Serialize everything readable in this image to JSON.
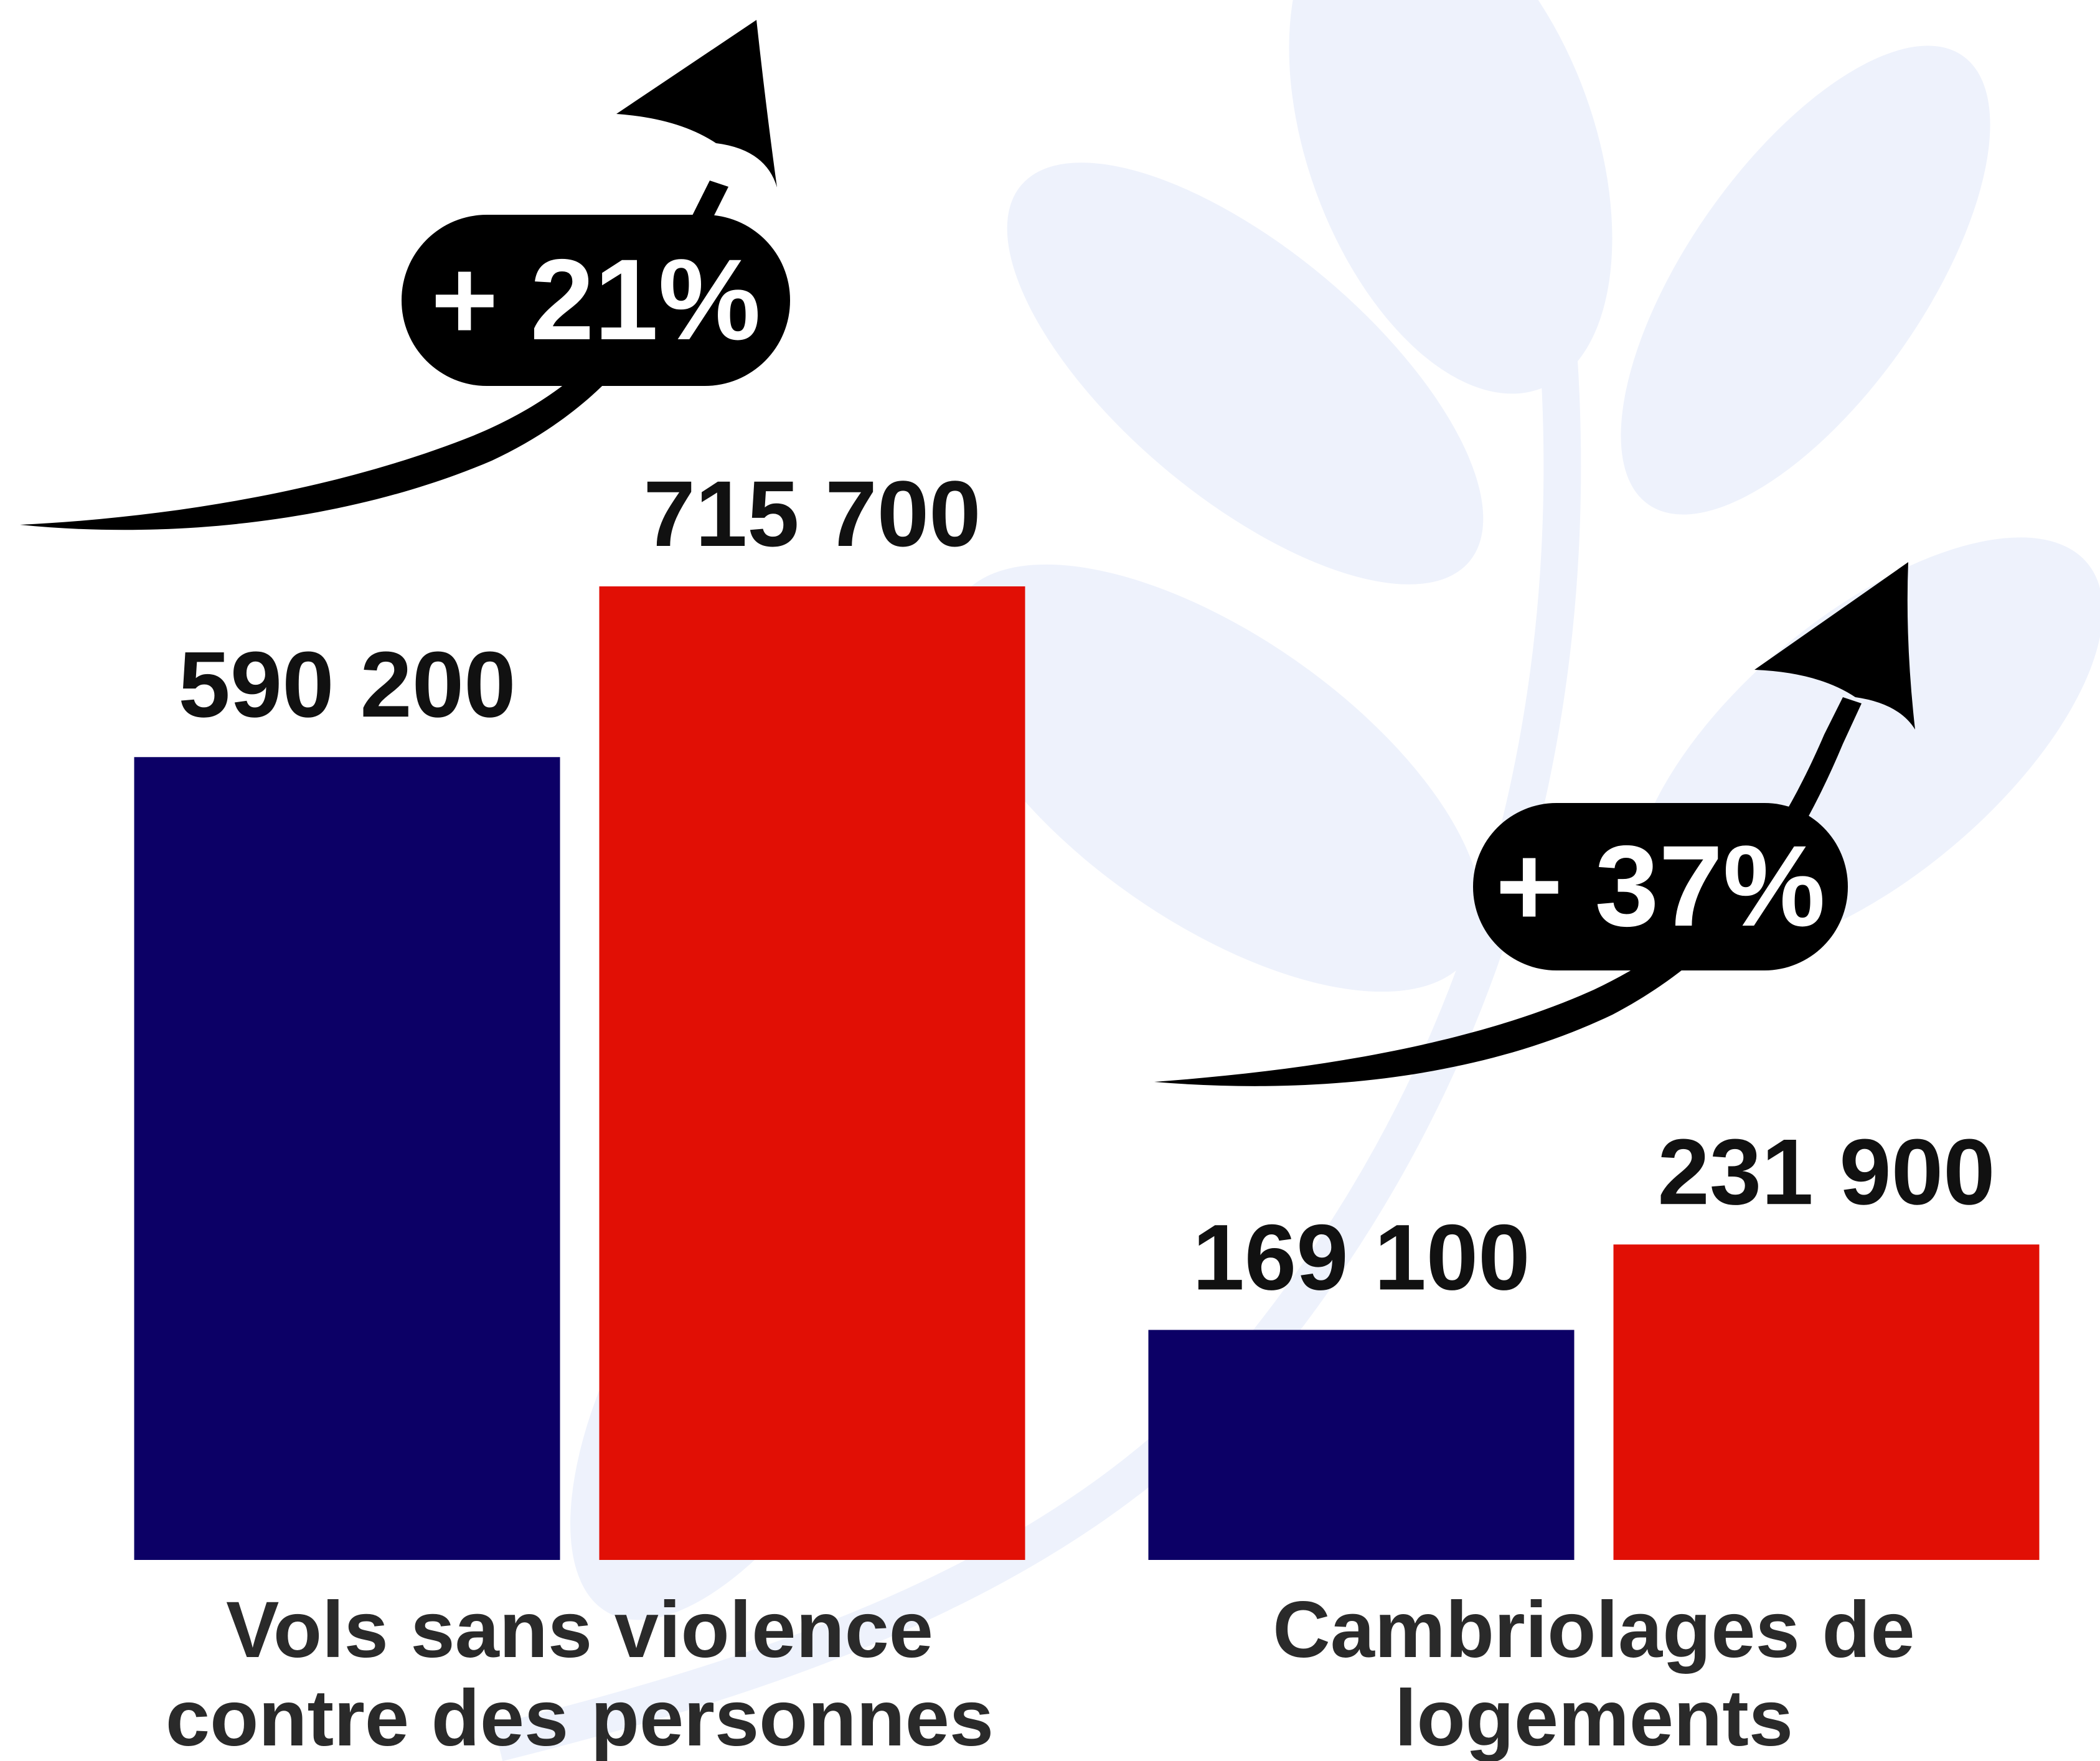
{
  "chart_data": {
    "type": "bar",
    "categories": [
      "Vols sans violence\ncontre des personnes",
      "Cambriolages de\nlogements"
    ],
    "series": [
      {
        "color": "#0c0066",
        "values": [
          590200,
          169100
        ],
        "value_labels": [
          "590 200",
          "169 100"
        ]
      },
      {
        "color": "#e10f05",
        "values": [
          715700,
          231900
        ],
        "value_labels": [
          "715 700",
          "231 900"
        ]
      }
    ],
    "annotations": [
      "+ 21%",
      "+ 37%"
    ]
  }
}
